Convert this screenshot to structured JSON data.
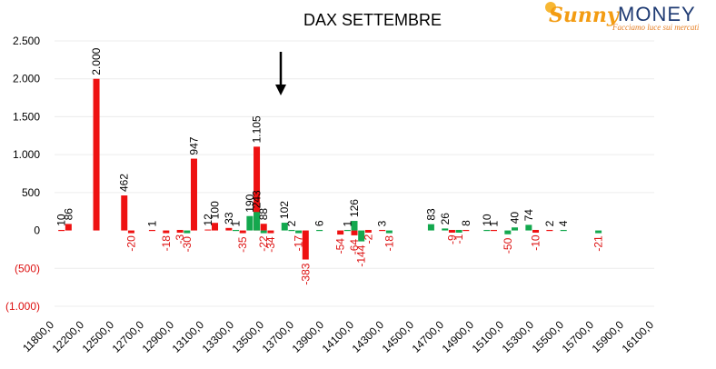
{
  "logo": {
    "sunny": "Sunny",
    "money": "MONEY",
    "tagline": "Facciamo luce sui mercati"
  },
  "colors": {
    "red": "#ee1111",
    "green": "#13a84e",
    "neg_label": "#dd1111",
    "grid": "#ececec"
  },
  "chart_data": {
    "type": "bar",
    "title": "DAX SETTEMBRE",
    "xlabel": "",
    "ylabel": "",
    "ylim": [
      -1000,
      2500
    ],
    "yticks": [
      {
        "v": 2500,
        "label": "2.500"
      },
      {
        "v": 2000,
        "label": "2.000"
      },
      {
        "v": 1500,
        "label": "1.500"
      },
      {
        "v": 1000,
        "label": "1.000"
      },
      {
        "v": 500,
        "label": "500"
      },
      {
        "v": 0,
        "label": "0"
      },
      {
        "v": -500,
        "label": "(500)"
      },
      {
        "v": -1000,
        "label": "(1.000)"
      }
    ],
    "x_range": [
      11800,
      16100
    ],
    "xticks": [
      "11800,0",
      "12200,0",
      "12500,0",
      "12700,0",
      "12900,0",
      "13100,0",
      "13300,0",
      "13500,0",
      "13700,0",
      "13900,0",
      "14100,0",
      "14300,0",
      "14500,0",
      "14700,0",
      "14900,0",
      "15100,0",
      "15300,0",
      "15500,0",
      "15700,0",
      "15900,0",
      "16100,0"
    ],
    "grid": true,
    "legend": "none",
    "annotation": "arrow pointing down at strike 13500",
    "series": [
      {
        "color": "red",
        "points": [
          {
            "x": 11850,
            "y": 10,
            "label": "10"
          },
          {
            "x": 11900,
            "y": 86,
            "label": "86"
          },
          {
            "x": 12100,
            "y": 2000,
            "label": "2.000"
          },
          {
            "x": 12300,
            "y": 462,
            "label": "462"
          },
          {
            "x": 12350,
            "y": -20,
            "label": "-20"
          },
          {
            "x": 12500,
            "y": 1,
            "label": "1"
          },
          {
            "x": 12600,
            "y": -18,
            "label": "-18"
          },
          {
            "x": 12700,
            "y": -3,
            "label": "-3"
          },
          {
            "x": 12800,
            "y": 947,
            "label": "947"
          },
          {
            "x": 12900,
            "y": 12,
            "label": "12"
          },
          {
            "x": 12950,
            "y": 100,
            "label": "100"
          },
          {
            "x": 13050,
            "y": 33,
            "label": "33"
          },
          {
            "x": 13150,
            "y": -35,
            "label": "-35"
          },
          {
            "x": 13250,
            "y": 1105,
            "label": "1.105"
          },
          {
            "x": 13300,
            "y": 88,
            "label": "88"
          },
          {
            "x": 13350,
            "y": -34,
            "label": "-34"
          },
          {
            "x": 13600,
            "y": -383,
            "label": "-383"
          },
          {
            "x": 13850,
            "y": -54,
            "label": "-54"
          },
          {
            "x": 13950,
            "y": -64,
            "label": "-64"
          },
          {
            "x": 14050,
            "y": -2,
            "label": "-2"
          },
          {
            "x": 14150,
            "y": 3,
            "label": "3"
          },
          {
            "x": 14650,
            "y": -9,
            "label": "-9"
          },
          {
            "x": 14750,
            "y": 8,
            "label": "8"
          },
          {
            "x": 14950,
            "y": 1,
            "label": "1"
          },
          {
            "x": 15250,
            "y": -10,
            "label": "-10"
          },
          {
            "x": 15350,
            "y": 2,
            "label": "2"
          }
        ]
      },
      {
        "color": "green",
        "points": [
          {
            "x": 12750,
            "y": -30,
            "label": "-30"
          },
          {
            "x": 13100,
            "y": 1,
            "label": "1"
          },
          {
            "x": 13200,
            "y": 190,
            "label": "190"
          },
          {
            "x": 13250,
            "y": 243,
            "label": "243"
          },
          {
            "x": 13300,
            "y": -22,
            "label": "-22"
          },
          {
            "x": 13450,
            "y": 102,
            "label": "102"
          },
          {
            "x": 13500,
            "y": 2,
            "label": "2"
          },
          {
            "x": 13550,
            "y": -17,
            "label": "-17"
          },
          {
            "x": 13700,
            "y": 6,
            "label": "6"
          },
          {
            "x": 13900,
            "y": 1,
            "label": "1"
          },
          {
            "x": 13950,
            "y": 126,
            "label": "126"
          },
          {
            "x": 14000,
            "y": -144,
            "label": "-144"
          },
          {
            "x": 14200,
            "y": -18,
            "label": "-18"
          },
          {
            "x": 14500,
            "y": 83,
            "label": "83"
          },
          {
            "x": 14600,
            "y": 26,
            "label": "26"
          },
          {
            "x": 14700,
            "y": -1,
            "label": "-1"
          },
          {
            "x": 14900,
            "y": 10,
            "label": "10"
          },
          {
            "x": 15050,
            "y": -50,
            "label": "-50"
          },
          {
            "x": 15100,
            "y": 40,
            "label": "40"
          },
          {
            "x": 15200,
            "y": 74,
            "label": "74"
          },
          {
            "x": 15450,
            "y": 4,
            "label": "4"
          },
          {
            "x": 15700,
            "y": -21,
            "label": "-21"
          }
        ]
      }
    ]
  }
}
